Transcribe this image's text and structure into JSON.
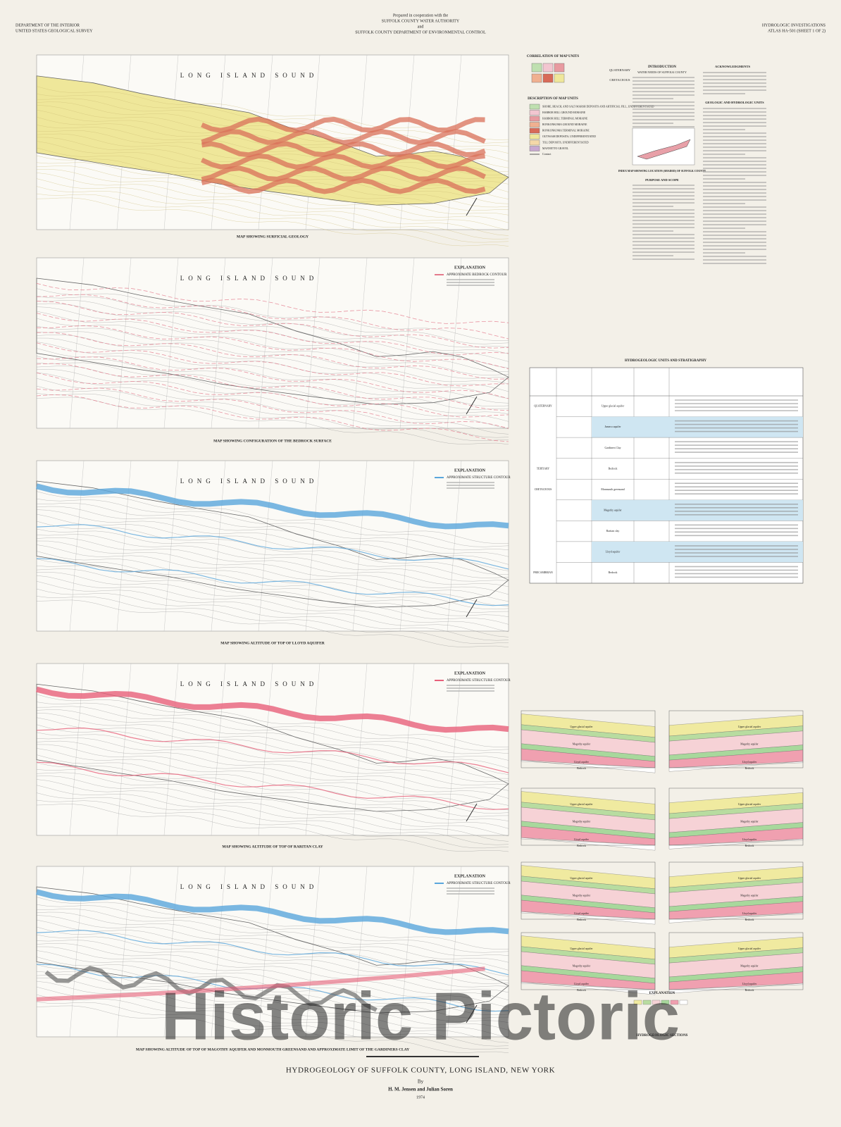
{
  "header": {
    "left": [
      "DEPARTMENT OF THE INTERIOR",
      "UNITED STATES GEOLOGICAL SURVEY"
    ],
    "center": [
      "Prepared in cooperation with the",
      "SUFFOLK COUNTY WATER AUTHORITY",
      "and",
      "SUFFOLK COUNTY DEPARTMENT OF ENVIRONMENTAL CONTROL"
    ],
    "right": [
      "HYDROLOGIC INVESTIGATIONS",
      "ATLAS HA-501 (SHEET 1 OF 2)"
    ]
  },
  "water_label": "LONG ISLAND SOUND",
  "explanation_title": "EXPLANATION",
  "maps": [
    {
      "caption": "MAP SHOWING SURFICIAL GEOLOGY",
      "fill": "#efe79a",
      "contour_color": "#d9705a"
    },
    {
      "caption": "MAP SHOWING CONFIGURATION OF THE BEDROCK SURFACE",
      "legend_item": "APPROXIMATE BEDROCK CONTOUR",
      "fill": "none",
      "contour_color": "#e47a8c"
    },
    {
      "caption": "MAP SHOWING ALTITUDE OF TOP OF LLOYD AQUIFER",
      "legend_item": "APPROXIMATE STRUCTURE CONTOUR",
      "fill": "none",
      "contour_color": "#5aa6dc"
    },
    {
      "caption": "MAP SHOWING ALTITUDE OF TOP OF RARITAN CLAY",
      "legend_item": "APPROXIMATE STRUCTURE CONTOUR",
      "fill": "none",
      "contour_color": "#e8607a"
    },
    {
      "caption": "MAP SHOWING ALTITUDE OF TOP OF MAGOTHY AQUIFER AND MONMOUTH GREENSAND AND APPROXIMATE LIMIT OF THE GARDINERS CLAY",
      "legend_item": "APPROXIMATE STRUCTURE CONTOUR",
      "fill": "none",
      "contour_color": "#5aa6dc"
    }
  ],
  "map_units": {
    "correlation_title": "CORRELATION OF MAP UNITS",
    "description_title": "DESCRIPTION OF MAP UNITS",
    "periods": [
      "QUATERNARY",
      "CRETACEOUS"
    ],
    "units": [
      {
        "name": "SHORE, BEACH, AND SALT-MARSH DEPOSITS AND ARTIFICIAL FILL, UNDIFFERENTIATED",
        "color": "#bfe0b0"
      },
      {
        "name": "HARBOR HILL GROUND MORAINE",
        "color": "#f2c6d0"
      },
      {
        "name": "HARBOR HILL TERMINAL MORAINE",
        "color": "#e89aa0"
      },
      {
        "name": "RONKONKOMA GROUND MORAINE",
        "color": "#f0b090"
      },
      {
        "name": "RONKONKOMA TERMINAL MORAINE",
        "color": "#d86a58"
      },
      {
        "name": "OUTWASH DEPOSITS, UNDIFFERENTIATED",
        "color": "#efe79a"
      },
      {
        "name": "TILL DEPOSITS, UNDIFFERENTIATED",
        "color": "#f4d8a8"
      },
      {
        "name": "MANNETTO GRAVEL",
        "color": "#c8a8d0"
      }
    ],
    "contact": "Contact"
  },
  "text_column": {
    "introduction": "INTRODUCTION",
    "water_needs": "WATER NEEDS OF SUFFOLK COUNTY",
    "index_map": "INDEX MAP SHOWING LOCATION (SHADED) OF SUFFOLK COUNTY",
    "purpose": "PURPOSE AND SCOPE",
    "acknowledgments": "ACKNOWLEDGMENTS",
    "geologic_units": "GEOLOGIC AND HYDROLOGIC UNITS"
  },
  "table": {
    "title": "HYDROGEOLOGIC UNITS AND STRATIGRAPHY",
    "rows": [
      {
        "system": "QUATERNARY",
        "unit": "Upper glacial aquifer",
        "blue": false
      },
      {
        "system": "",
        "unit": "Jameco aquifer",
        "blue": true
      },
      {
        "system": "",
        "unit": "Gardiners Clay",
        "blue": false
      },
      {
        "system": "TERTIARY",
        "unit": "Bedrock",
        "blue": false
      },
      {
        "system": "CRETACEOUS",
        "unit": "Monmouth greensand",
        "blue": false
      },
      {
        "system": "",
        "unit": "Magothy aquifer",
        "blue": true
      },
      {
        "system": "",
        "unit": "Raritan clay",
        "blue": false
      },
      {
        "system": "",
        "unit": "Lloyd aquifer",
        "blue": true
      },
      {
        "system": "PRECAMBRIAN",
        "unit": "Bedrock",
        "blue": false
      }
    ]
  },
  "sections": {
    "title": "HYDROGEOLOGIC SECTIONS",
    "layers": [
      {
        "name": "Upper glacial aquifer",
        "color": "#f0eaa0"
      },
      {
        "name": "Gardiners Clay",
        "color": "#b8dca0"
      },
      {
        "name": "Magothy aquifer",
        "color": "#f6d2d6"
      },
      {
        "name": "Raritan clay",
        "color": "#a8d89c"
      },
      {
        "name": "Lloyd aquifer",
        "color": "#f0a0b0"
      },
      {
        "name": "Bedrock",
        "color": "#ffffff"
      }
    ]
  },
  "footer": {
    "title": "HYDROGEOLOGY OF SUFFOLK COUNTY, LONG ISLAND, NEW YORK",
    "by": "By",
    "authors": "H. M. Jensen and Julian Soren",
    "year": "1974",
    "watermark": "Historic Pictoric"
  }
}
